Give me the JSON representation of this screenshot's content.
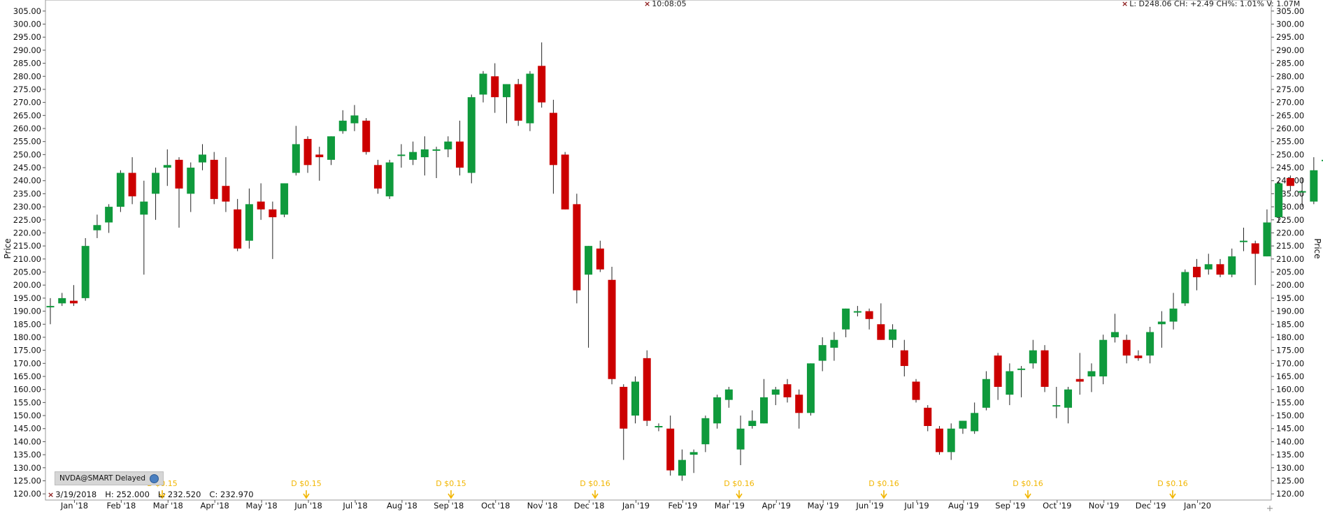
{
  "header": {
    "time": "10:08:05",
    "quote": "L: D248.06 CH: +2.49 CH%: 1.01% V: 1.07M"
  },
  "symbol": {
    "label": "NVDA@SMART Delayed"
  },
  "status": {
    "date": "3/19/2018",
    "high": "H: 252.000",
    "low": "L: 232.520",
    "close": "C: 232.970"
  },
  "chart_data": {
    "type": "candlestick",
    "ylabel": "Price",
    "ylim": [
      117.5,
      307.5
    ],
    "yticks": [
      120,
      125,
      130,
      135,
      140,
      145,
      150,
      155,
      160,
      165,
      170,
      175,
      180,
      185,
      190,
      195,
      200,
      205,
      210,
      215,
      220,
      225,
      230,
      235,
      240,
      245,
      250,
      255,
      260,
      265,
      270,
      275,
      280,
      285,
      290,
      295,
      300,
      305
    ],
    "x_tick_labels": [
      "Jan '18",
      "Feb '18",
      "Mar '18",
      "Apr '18",
      "May '18",
      "Jun '18",
      "Jul '18",
      "Aug '18",
      "Sep '18",
      "Oct '18",
      "Nov '18",
      "Dec '18",
      "Jan '19",
      "Feb '19",
      "Mar '19",
      "Apr '19",
      "May '19",
      "Jun '19",
      "Jul '19",
      "Aug '19",
      "Sep '19",
      "Oct '19",
      "Nov '19",
      "Dec '19",
      "Jan '20"
    ],
    "x_tick_index": [
      2,
      6,
      10,
      14,
      18,
      22,
      26,
      30,
      34,
      38,
      42,
      46,
      50,
      54,
      58,
      62,
      66,
      70,
      74,
      78,
      82,
      86,
      90,
      94,
      98
    ],
    "candles": [
      {
        "o": 192,
        "h": 195,
        "l": 185,
        "c": 192
      },
      {
        "o": 193,
        "h": 197,
        "l": 192,
        "c": 195
      },
      {
        "o": 194,
        "h": 200,
        "l": 192,
        "c": 193
      },
      {
        "o": 195,
        "h": 218,
        "l": 194,
        "c": 215
      },
      {
        "o": 221,
        "h": 227,
        "l": 218,
        "c": 223
      },
      {
        "o": 224,
        "h": 231,
        "l": 220,
        "c": 230
      },
      {
        "o": 230,
        "h": 244,
        "l": 228,
        "c": 243
      },
      {
        "o": 243,
        "h": 249,
        "l": 231,
        "c": 234
      },
      {
        "o": 227,
        "h": 240,
        "l": 204,
        "c": 232
      },
      {
        "o": 235,
        "h": 245,
        "l": 225,
        "c": 243
      },
      {
        "o": 245,
        "h": 252,
        "l": 238,
        "c": 246
      },
      {
        "o": 248,
        "h": 249,
        "l": 222,
        "c": 237
      },
      {
        "o": 235,
        "h": 247,
        "l": 228,
        "c": 245
      },
      {
        "o": 247,
        "h": 254,
        "l": 244,
        "c": 250
      },
      {
        "o": 248,
        "h": 251,
        "l": 231,
        "c": 233
      },
      {
        "o": 238,
        "h": 249,
        "l": 228,
        "c": 232
      },
      {
        "o": 229,
        "h": 233,
        "l": 213,
        "c": 214
      },
      {
        "o": 217,
        "h": 237,
        "l": 214,
        "c": 231
      },
      {
        "o": 232,
        "h": 239,
        "l": 225,
        "c": 229
      },
      {
        "o": 229,
        "h": 232,
        "l": 210,
        "c": 226
      },
      {
        "o": 227,
        "h": 239,
        "l": 226,
        "c": 239
      },
      {
        "o": 243,
        "h": 261,
        "l": 242,
        "c": 254
      },
      {
        "o": 256,
        "h": 257,
        "l": 243,
        "c": 246
      },
      {
        "o": 250,
        "h": 253,
        "l": 240,
        "c": 249
      },
      {
        "o": 248,
        "h": 257,
        "l": 246,
        "c": 257
      },
      {
        "o": 259,
        "h": 267,
        "l": 258,
        "c": 263
      },
      {
        "o": 262,
        "h": 269,
        "l": 259,
        "c": 265
      },
      {
        "o": 263,
        "h": 264,
        "l": 250,
        "c": 251
      },
      {
        "o": 246,
        "h": 248,
        "l": 235,
        "c": 237
      },
      {
        "o": 234,
        "h": 248,
        "l": 233,
        "c": 247
      },
      {
        "o": 250,
        "h": 254,
        "l": 245,
        "c": 250
      },
      {
        "o": 248,
        "h": 255,
        "l": 246,
        "c": 251
      },
      {
        "o": 249,
        "h": 257,
        "l": 242,
        "c": 252
      },
      {
        "o": 252,
        "h": 253,
        "l": 241,
        "c": 252
      },
      {
        "o": 252,
        "h": 257,
        "l": 249,
        "c": 255
      },
      {
        "o": 255,
        "h": 263,
        "l": 242,
        "c": 245
      },
      {
        "o": 243,
        "h": 273,
        "l": 239,
        "c": 272
      },
      {
        "o": 273,
        "h": 282,
        "l": 270,
        "c": 281
      },
      {
        "o": 280,
        "h": 285,
        "l": 266,
        "c": 272
      },
      {
        "o": 272,
        "h": 277,
        "l": 262,
        "c": 277
      },
      {
        "o": 277,
        "h": 279,
        "l": 261,
        "c": 263
      },
      {
        "o": 262,
        "h": 282,
        "l": 259,
        "c": 281
      },
      {
        "o": 284,
        "h": 293,
        "l": 268,
        "c": 270
      },
      {
        "o": 266,
        "h": 271,
        "l": 235,
        "c": 246
      },
      {
        "o": 250,
        "h": 251,
        "l": 229,
        "c": 229
      },
      {
        "o": 231,
        "h": 235,
        "l": 193,
        "c": 198
      },
      {
        "o": 204,
        "h": 215,
        "l": 176,
        "c": 215
      },
      {
        "o": 214,
        "h": 217,
        "l": 205,
        "c": 206
      },
      {
        "o": 202,
        "h": 207,
        "l": 162,
        "c": 164
      },
      {
        "o": 161,
        "h": 162,
        "l": 133,
        "c": 145
      },
      {
        "o": 150,
        "h": 165,
        "l": 147,
        "c": 163
      },
      {
        "o": 172,
        "h": 175,
        "l": 146,
        "c": 148
      },
      {
        "o": 146,
        "h": 147,
        "l": 144,
        "c": 146
      },
      {
        "o": 145,
        "h": 150,
        "l": 127,
        "c": 129
      },
      {
        "o": 127,
        "h": 137,
        "l": 125,
        "c": 133
      },
      {
        "o": 135,
        "h": 137,
        "l": 128,
        "c": 136
      },
      {
        "o": 139,
        "h": 150,
        "l": 136,
        "c": 149
      },
      {
        "o": 147,
        "h": 158,
        "l": 145,
        "c": 157
      },
      {
        "o": 156,
        "h": 161,
        "l": 153,
        "c": 160
      },
      {
        "o": 137,
        "h": 150,
        "l": 131,
        "c": 145
      },
      {
        "o": 146,
        "h": 152,
        "l": 145,
        "c": 148
      },
      {
        "o": 147,
        "h": 164,
        "l": 147,
        "c": 157
      },
      {
        "o": 158,
        "h": 161,
        "l": 154,
        "c": 160
      },
      {
        "o": 162,
        "h": 164,
        "l": 155,
        "c": 157
      },
      {
        "o": 158,
        "h": 160,
        "l": 145,
        "c": 151
      },
      {
        "o": 151,
        "h": 170,
        "l": 150,
        "c": 170
      },
      {
        "o": 171,
        "h": 180,
        "l": 167,
        "c": 177
      },
      {
        "o": 176,
        "h": 182,
        "l": 171,
        "c": 179
      },
      {
        "o": 183,
        "h": 191,
        "l": 180,
        "c": 191
      },
      {
        "o": 190,
        "h": 192,
        "l": 188,
        "c": 190
      },
      {
        "o": 190,
        "h": 191,
        "l": 183,
        "c": 187
      },
      {
        "o": 185,
        "h": 193,
        "l": 179,
        "c": 179
      },
      {
        "o": 179,
        "h": 185,
        "l": 176,
        "c": 183
      },
      {
        "o": 175,
        "h": 179,
        "l": 165,
        "c": 169
      },
      {
        "o": 163,
        "h": 164,
        "l": 155,
        "c": 156
      },
      {
        "o": 153,
        "h": 154,
        "l": 144,
        "c": 146
      },
      {
        "o": 145,
        "h": 146,
        "l": 135,
        "c": 136
      },
      {
        "o": 136,
        "h": 147,
        "l": 133,
        "c": 145
      },
      {
        "o": 145,
        "h": 148,
        "l": 143,
        "c": 148
      },
      {
        "o": 144,
        "h": 155,
        "l": 143,
        "c": 151
      },
      {
        "o": 153,
        "h": 167,
        "l": 152,
        "c": 164
      },
      {
        "o": 173,
        "h": 174,
        "l": 156,
        "c": 161
      },
      {
        "o": 158,
        "h": 170,
        "l": 154,
        "c": 167
      },
      {
        "o": 168,
        "h": 169,
        "l": 157,
        "c": 168
      },
      {
        "o": 170,
        "h": 179,
        "l": 168,
        "c": 175
      },
      {
        "o": 175,
        "h": 177,
        "l": 159,
        "c": 161
      },
      {
        "o": 154,
        "h": 161,
        "l": 149,
        "c": 154
      },
      {
        "o": 153,
        "h": 161,
        "l": 147,
        "c": 160
      },
      {
        "o": 164,
        "h": 174,
        "l": 158,
        "c": 163
      },
      {
        "o": 165,
        "h": 170,
        "l": 159,
        "c": 167
      },
      {
        "o": 165,
        "h": 181,
        "l": 162,
        "c": 179
      },
      {
        "o": 180,
        "h": 189,
        "l": 178,
        "c": 182
      },
      {
        "o": 179,
        "h": 181,
        "l": 170,
        "c": 173
      },
      {
        "o": 173,
        "h": 175,
        "l": 171,
        "c": 172
      },
      {
        "o": 173,
        "h": 184,
        "l": 170,
        "c": 182
      },
      {
        "o": 185,
        "h": 190,
        "l": 176,
        "c": 186
      },
      {
        "o": 186,
        "h": 197,
        "l": 183,
        "c": 191
      },
      {
        "o": 193,
        "h": 206,
        "l": 192,
        "c": 205
      },
      {
        "o": 207,
        "h": 210,
        "l": 198,
        "c": 203
      },
      {
        "o": 206,
        "h": 212,
        "l": 204,
        "c": 208
      },
      {
        "o": 208,
        "h": 210,
        "l": 203,
        "c": 204
      },
      {
        "o": 204,
        "h": 214,
        "l": 203,
        "c": 211
      },
      {
        "o": 217,
        "h": 222,
        "l": 213,
        "c": 217
      },
      {
        "o": 216,
        "h": 217,
        "l": 200,
        "c": 212
      },
      {
        "o": 211,
        "h": 229,
        "l": 211,
        "c": 224
      },
      {
        "o": 226,
        "h": 240,
        "l": 224,
        "c": 239
      },
      {
        "o": 241,
        "h": 242,
        "l": 236,
        "c": 238
      },
      {
        "o": 236,
        "h": 241,
        "l": 230,
        "c": 236
      },
      {
        "o": 232,
        "h": 249,
        "l": 231,
        "c": 244
      },
      {
        "o": 248,
        "h": 253,
        "l": 245,
        "c": 248
      }
    ],
    "dividends": [
      {
        "label": "D $0.15",
        "index": 1
      },
      {
        "label": "D $0.15",
        "index": 2
      },
      {
        "label": "D $0.15",
        "index": 3
      },
      {
        "label": "D $0.16",
        "index": 4
      },
      {
        "label": "D $0.16",
        "index": 5
      },
      {
        "label": "D $0.16",
        "index": 6
      },
      {
        "label": "D $0.16",
        "index": 7
      },
      {
        "label": "D $0.16",
        "index": 8
      }
    ],
    "colors": {
      "up": "#0f9a3c",
      "down": "#cc0000",
      "wick": "#222222",
      "dividend": "#f2b600"
    }
  }
}
